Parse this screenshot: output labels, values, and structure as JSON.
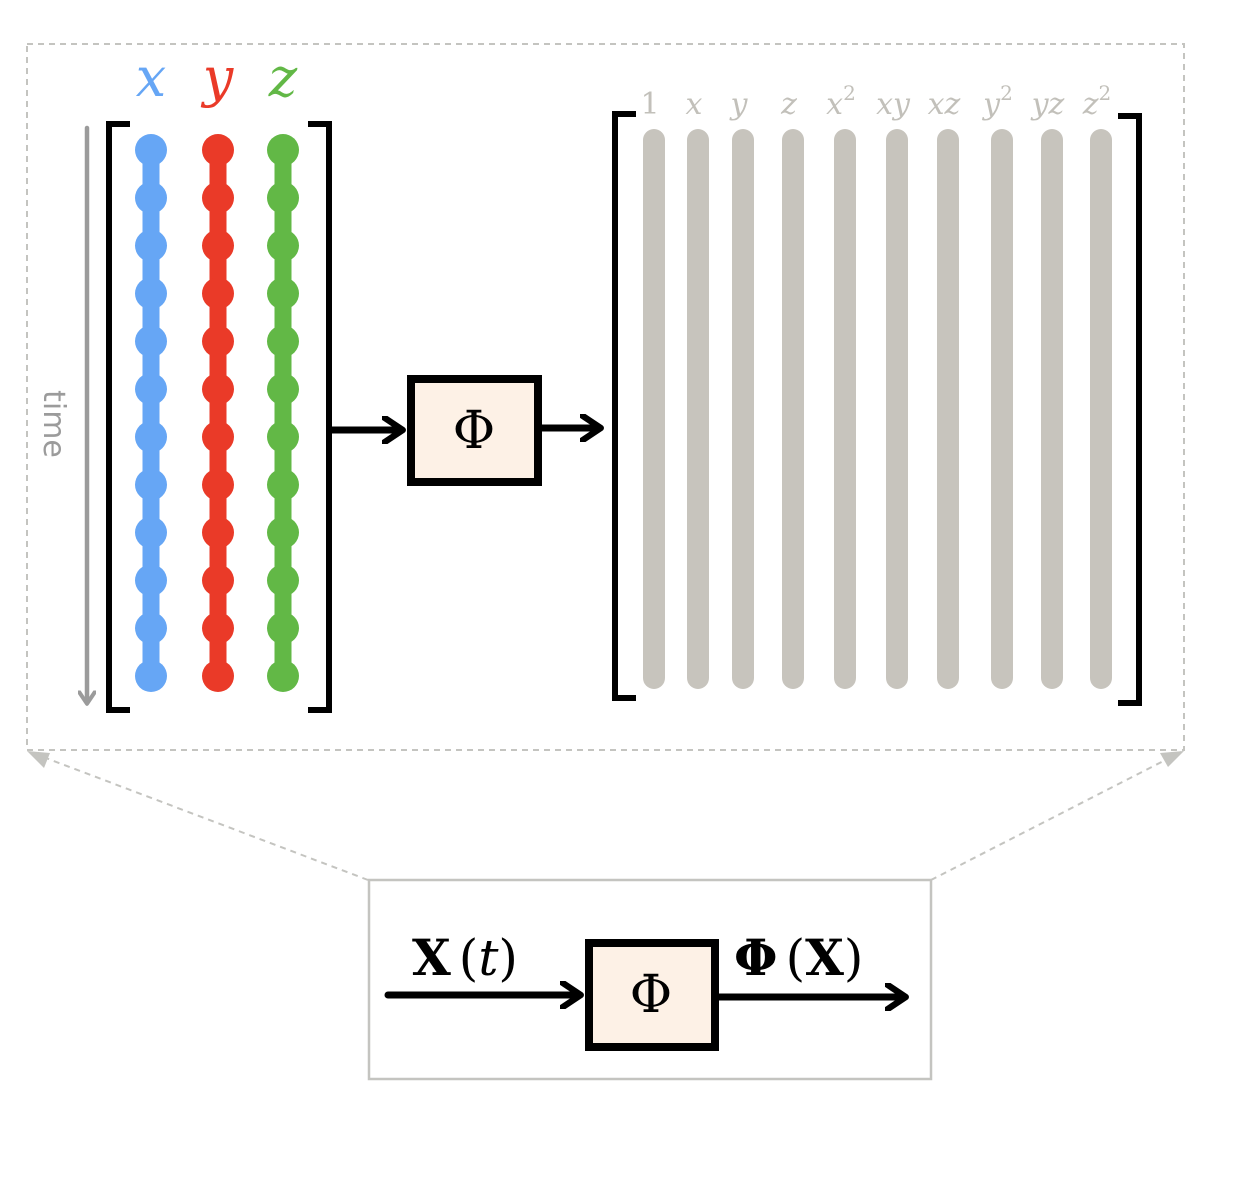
{
  "input_matrix": {
    "columns": [
      {
        "label": "x",
        "color": "#66a6f5"
      },
      {
        "label": "y",
        "color": "#ea3a28"
      },
      {
        "label": "z",
        "color": "#62b846"
      }
    ],
    "time_label": "time",
    "samples_per_column": 12
  },
  "operator_symbol": "Φ",
  "library": {
    "column_color": "#c7c4bd",
    "label_color": "#c2c0ba",
    "labels": [
      {
        "base": "1",
        "sup": ""
      },
      {
        "base": "x",
        "sup": ""
      },
      {
        "base": "y",
        "sup": ""
      },
      {
        "base": "z",
        "sup": ""
      },
      {
        "base": "x",
        "sup": "2"
      },
      {
        "base": "xy",
        "sup": ""
      },
      {
        "base": "xz",
        "sup": ""
      },
      {
        "base": "y",
        "sup": "2"
      },
      {
        "base": "yz",
        "sup": ""
      },
      {
        "base": "z",
        "sup": "2"
      }
    ]
  },
  "summary": {
    "input_label": {
      "bold": "X",
      "rest_open": "(",
      "var": "t",
      "rest_close": ")"
    },
    "output_label": {
      "bold": "Φ",
      "open": "(",
      "bold_inner": "X",
      "close": ")"
    },
    "operator_symbol": "Φ"
  },
  "colors": {
    "box_fill": "#fdf1e6",
    "zoom_frame": "#c4c4c0",
    "time_arrow": "#9b9b9b"
  }
}
